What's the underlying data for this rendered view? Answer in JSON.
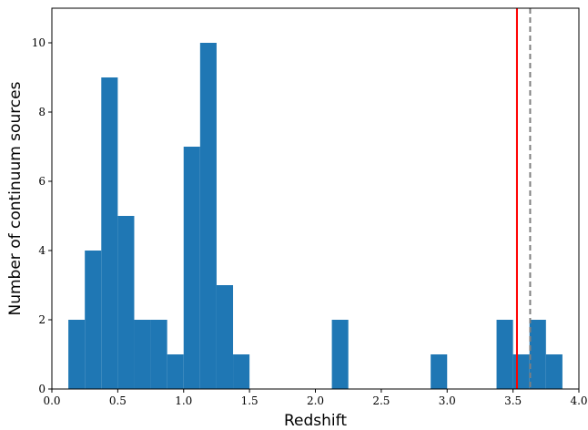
{
  "chart_data": {
    "type": "bar",
    "xlabel": "Redshift",
    "ylabel": "Number of continuum sources",
    "xlim": [
      0.0,
      4.0
    ],
    "ylim": [
      0,
      11
    ],
    "grid": false,
    "x_ticks": [
      "0.0",
      "0.5",
      "1.0",
      "1.5",
      "2.0",
      "2.5",
      "3.0",
      "3.5",
      "4.0"
    ],
    "y_ticks": [
      "0",
      "2",
      "4",
      "6",
      "8",
      "10"
    ],
    "bin_width": 0.125,
    "bar_color": "#1f77b4",
    "bins": [
      {
        "x0": 0.125,
        "value": 2
      },
      {
        "x0": 0.25,
        "value": 4
      },
      {
        "x0": 0.375,
        "value": 9
      },
      {
        "x0": 0.5,
        "value": 5
      },
      {
        "x0": 0.625,
        "value": 2
      },
      {
        "x0": 0.75,
        "value": 2
      },
      {
        "x0": 0.875,
        "value": 1
      },
      {
        "x0": 1.0,
        "value": 7
      },
      {
        "x0": 1.125,
        "value": 10
      },
      {
        "x0": 1.25,
        "value": 3
      },
      {
        "x0": 1.375,
        "value": 1
      },
      {
        "x0": 2.125,
        "value": 2
      },
      {
        "x0": 2.875,
        "value": 1
      },
      {
        "x0": 3.375,
        "value": 2
      },
      {
        "x0": 3.5,
        "value": 1
      },
      {
        "x0": 3.625,
        "value": 2
      },
      {
        "x0": 3.75,
        "value": 1
      }
    ],
    "reference_lines": [
      {
        "x": 3.53,
        "color": "#ff0000",
        "style": "solid"
      },
      {
        "x": 3.63,
        "color": "#808080",
        "style": "dashed"
      }
    ]
  }
}
